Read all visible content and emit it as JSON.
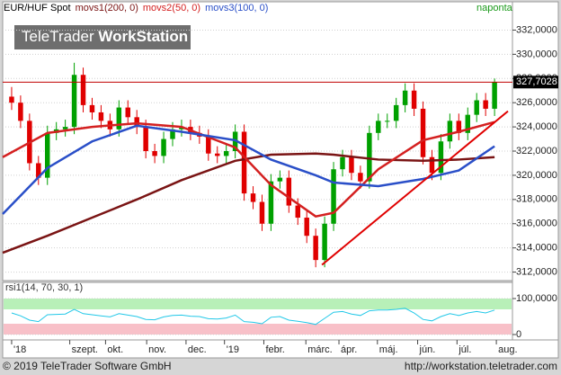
{
  "chart_data": [
    {
      "type": "candlestick",
      "title": "EUR/HUF Spot",
      "frequency": "naponta",
      "watermark": [
        "TeleTrader",
        "WorkStation"
      ],
      "up_color": "#00a000",
      "down_color": "#e00000",
      "open": [
        326.5,
        326.0,
        324.5,
        321.0,
        319.8,
        323.5,
        323.8,
        324.0,
        328.3,
        325.8,
        325.2,
        324.5,
        323.8,
        325.6,
        324.8,
        324.0,
        322.0,
        321.6,
        323.0,
        323.8,
        324.0,
        323.5,
        323.2,
        321.8,
        321.6,
        322.0,
        323.6,
        318.5,
        317.8,
        316.0,
        319.5,
        319.8,
        317.5,
        316.5,
        315.0,
        313.0,
        316.0,
        320.5,
        321.5,
        320.2,
        319.5,
        323.5,
        324.5,
        324.5,
        325.8,
        327.0,
        325.5,
        321.5,
        320.2,
        322.8,
        324.5,
        323.5,
        325.0,
        326.2,
        325.5
      ],
      "high": [
        327.3,
        326.6,
        325.1,
        321.6,
        324.1,
        324.4,
        324.6,
        329.3,
        328.9,
        326.4,
        325.8,
        325.1,
        326.2,
        326.2,
        325.4,
        324.6,
        322.6,
        323.6,
        324.4,
        324.6,
        324.6,
        324.1,
        323.8,
        322.4,
        322.6,
        324.2,
        324.2,
        319.1,
        318.4,
        320.1,
        320.4,
        320.4,
        318.1,
        317.1,
        315.6,
        316.6,
        321.1,
        322.1,
        322.1,
        320.8,
        324.1,
        325.1,
        325.1,
        326.4,
        327.6,
        327.6,
        326.1,
        322.1,
        323.4,
        325.1,
        325.1,
        325.6,
        326.8,
        326.8,
        328.0
      ],
      "low": [
        325.4,
        323.9,
        320.4,
        319.2,
        319.2,
        322.9,
        323.2,
        323.4,
        325.2,
        324.6,
        323.9,
        323.2,
        323.2,
        324.2,
        323.4,
        321.4,
        321.0,
        321.0,
        322.4,
        323.2,
        322.9,
        322.6,
        321.2,
        321.0,
        321.0,
        321.4,
        317.9,
        317.2,
        315.4,
        315.4,
        318.9,
        316.9,
        315.9,
        314.4,
        312.4,
        312.4,
        315.4,
        319.9,
        319.6,
        318.9,
        318.9,
        322.9,
        323.9,
        323.9,
        325.2,
        324.9,
        320.9,
        319.6,
        319.6,
        322.2,
        322.9,
        322.9,
        324.4,
        324.9,
        324.9
      ],
      "close": [
        326.0,
        324.5,
        321.0,
        319.8,
        323.5,
        323.8,
        324.0,
        328.3,
        325.8,
        325.2,
        324.5,
        323.8,
        325.6,
        324.8,
        324.0,
        322.0,
        321.6,
        323.0,
        323.8,
        324.0,
        323.5,
        323.2,
        321.8,
        321.6,
        322.0,
        323.6,
        318.5,
        317.8,
        316.0,
        319.5,
        319.8,
        317.5,
        316.5,
        315.0,
        313.0,
        316.0,
        320.5,
        321.5,
        320.2,
        319.5,
        323.5,
        324.5,
        324.5,
        325.8,
        327.0,
        325.5,
        321.5,
        320.2,
        322.8,
        324.5,
        323.5,
        325.0,
        326.2,
        325.5,
        327.7
      ],
      "series": [
        {
          "name": "movs1(200, 0)",
          "color": "#7a1414",
          "x": [
            -1,
            4,
            9,
            14,
            19,
            25,
            29,
            34,
            36,
            41,
            46,
            50,
            54
          ],
          "values": [
            313.6,
            315.0,
            316.5,
            318.0,
            319.6,
            321.2,
            321.7,
            321.8,
            321.7,
            321.3,
            321.2,
            321.3,
            321.5
          ]
        },
        {
          "name": "movs2(50, 0)",
          "color": "#d42020",
          "x": [
            -1,
            4,
            9,
            14,
            19,
            25,
            29,
            34,
            36,
            41,
            46,
            50,
            54
          ],
          "values": [
            321.5,
            323.5,
            324.0,
            324.3,
            324.0,
            322.3,
            319.2,
            316.6,
            316.9,
            320.5,
            322.9,
            323.6,
            324.4
          ]
        },
        {
          "name": "movs3(100, 0)",
          "color": "#2a4fc8",
          "x": [
            -1,
            4,
            9,
            14,
            19,
            25,
            29,
            34,
            36,
            41,
            46,
            50,
            54
          ],
          "values": [
            316.8,
            320.6,
            322.8,
            324.1,
            323.6,
            322.9,
            321.3,
            320.0,
            319.4,
            319.1,
            319.7,
            320.4,
            322.4
          ]
        }
      ],
      "hline": {
        "value": 327.7,
        "color": "#c00000"
      },
      "trendline": {
        "x": [
          34.7,
          55.5
        ],
        "values": [
          312.6,
          325.3
        ],
        "color": "#e00000"
      },
      "last_value": {
        "value": 327.7028,
        "label": "327,7028"
      },
      "xlim": [
        -1,
        56
      ],
      "xticks": [
        {
          "value": 0,
          "label": "'18"
        },
        {
          "value": 6.5,
          "label": "szept."
        },
        {
          "value": 10.5,
          "label": "okt."
        },
        {
          "value": 15.1,
          "label": "nov."
        },
        {
          "value": 19.5,
          "label": "dec."
        },
        {
          "value": 23.8,
          "label": "'19"
        },
        {
          "value": 28.2,
          "label": "febr."
        },
        {
          "value": 32.9,
          "label": "márc."
        },
        {
          "value": 36.6,
          "label": "ápr."
        },
        {
          "value": 40.9,
          "label": "máj."
        },
        {
          "value": 45.4,
          "label": "jún."
        },
        {
          "value": 49.8,
          "label": "júl."
        },
        {
          "value": 54.2,
          "label": "aug."
        }
      ],
      "ylim": [
        311.3,
        333
      ],
      "yticks": [
        {
          "value": 312,
          "label": "312,0000"
        },
        {
          "value": 314,
          "label": "314,0000"
        },
        {
          "value": 316,
          "label": "316,0000"
        },
        {
          "value": 318,
          "label": "318,0000"
        },
        {
          "value": 320,
          "label": "320,0000"
        },
        {
          "value": 322,
          "label": "322,0000"
        },
        {
          "value": 324,
          "label": "324,0000"
        },
        {
          "value": 326,
          "label": "326,0000"
        },
        {
          "value": 328,
          "label": "328,0000"
        },
        {
          "value": 330,
          "label": "330,0000"
        },
        {
          "value": 332,
          "label": "332,0000"
        }
      ],
      "grid": true
    },
    {
      "type": "line",
      "title": "rsi1(14, 70, 30, 1)",
      "bands": [
        {
          "range": [
            70,
            100
          ],
          "color": "#b8f0b8"
        },
        {
          "range": [
            0,
            30
          ],
          "color": "#f8c0c8"
        }
      ],
      "series": [
        {
          "color": "#22c8e8",
          "values": [
            60,
            52,
            40,
            36,
            55,
            56,
            57,
            70,
            58,
            55,
            52,
            49,
            58,
            54,
            50,
            42,
            41,
            49,
            53,
            54,
            51,
            50,
            44,
            43,
            46,
            54,
            36,
            34,
            30,
            48,
            50,
            40,
            37,
            33,
            28,
            45,
            62,
            64,
            57,
            53,
            66,
            68,
            68,
            70,
            73,
            60,
            42,
            38,
            50,
            58,
            53,
            60,
            64,
            60,
            68
          ]
        }
      ],
      "xlim": [
        -1,
        56
      ],
      "ylim": [
        -15,
        145
      ],
      "yticks": [
        0,
        {
          "value": 100,
          "label": "100,0000"
        }
      ],
      "grid": true
    }
  ],
  "footer": {
    "left": "© 2019 TeleTrader Software GmbH",
    "right": "http://workstation.teletrader.com"
  }
}
